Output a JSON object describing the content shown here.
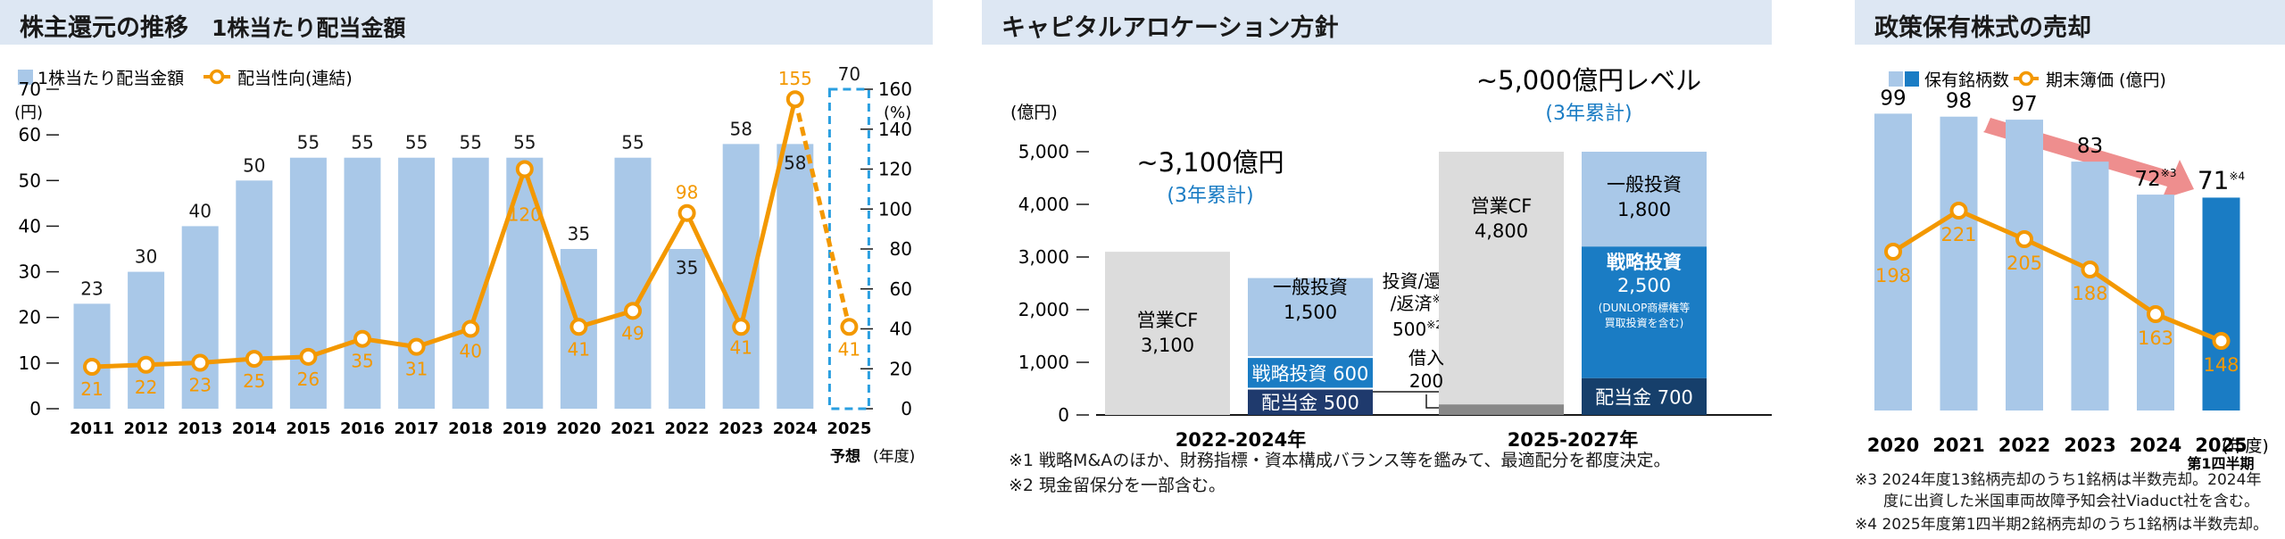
{
  "dividends": {
    "title": "株主還元の推移",
    "subtitle": "1株当たり配当金額",
    "legend_bar": "1株当たり配当金額",
    "legend_line": "配当性向(連結)",
    "left_unit": "(円)",
    "right_unit": "(%)",
    "forecast_label": "予想",
    "year_unit": "(年度)",
    "chart_data": {
      "type": "bar",
      "categories": [
        "2011",
        "2012",
        "2013",
        "2014",
        "2015",
        "2016",
        "2017",
        "2018",
        "2019",
        "2020",
        "2021",
        "2022",
        "2023",
        "2024",
        "2025"
      ],
      "series": [
        {
          "name": "1株当たり配当金額",
          "values": [
            23,
            30,
            40,
            50,
            55,
            55,
            55,
            55,
            55,
            35,
            55,
            35,
            58,
            58,
            70
          ]
        },
        {
          "name": "配当性向(連結)",
          "values": [
            21,
            22,
            23,
            25,
            26,
            35,
            31,
            40,
            120,
            41,
            49,
            98,
            41,
            155,
            41
          ]
        }
      ],
      "forecast_index": 14,
      "ylim_left": [
        0,
        70
      ],
      "yticks_left": [
        0,
        10,
        20,
        30,
        40,
        50,
        60,
        70
      ],
      "ylim_right": [
        0,
        160
      ],
      "yticks_right": [
        0,
        20,
        40,
        60,
        80,
        100,
        120,
        140,
        160
      ]
    }
  },
  "capital": {
    "title": "キャピタルアロケーション方針",
    "unit": "(億円)",
    "chart_data": {
      "type": "bar",
      "ylim": [
        0,
        5000
      ],
      "yticks": [
        0,
        1000,
        2000,
        3000,
        4000,
        5000
      ],
      "ytick_labels": [
        "0",
        "1,000",
        "2,000",
        "3,000",
        "4,000",
        "5,000"
      ],
      "periods": [
        {
          "label": "2022-2024年",
          "total_label": "~3,100億円",
          "total_sub": "(3年累計)",
          "source": {
            "name": "営業CF",
            "value": "3,100",
            "amount": 3100
          },
          "uses": [
            {
              "name": "配当金",
              "value": "500",
              "amount": 500
            },
            {
              "name": "戦略投資",
              "value": "600",
              "amount": 600
            },
            {
              "name": "一般投資",
              "value": "1,500",
              "amount": 1500
            }
          ],
          "other": {
            "name": "投資/還元/返済",
            "note1": "※1",
            "value": "500",
            "note2": "※2"
          }
        },
        {
          "label": "2025-2027年",
          "total_label": "~5,000億円レベル",
          "total_sub": "(3年累計)",
          "source": {
            "name": "営業CF",
            "value": "4,800",
            "amount": 4800
          },
          "borrow": {
            "name": "借入",
            "value": "200",
            "amount": 200
          },
          "uses": [
            {
              "name": "配当金",
              "value": "700",
              "amount": 700
            },
            {
              "name": "戦略投資",
              "value": "2,500",
              "amount": 2500,
              "sub1": "(DUNLOP商標権等",
              "sub2": "買取投資を含む)"
            },
            {
              "name": "一般投資",
              "value": "1,800",
              "amount": 1800
            }
          ]
        }
      ]
    },
    "note1": "※1 戦略M&Aのほか、財務指標・資本構成バランス等を鑑みて、最適配分を都度決定。",
    "note2": "※2 現金留保分を一部含む。"
  },
  "holdings": {
    "title": "政策保有株式の売却",
    "legend_bar": "保有銘柄数",
    "legend_line": "期末簿価 (億円)",
    "year_unit": "(年度)",
    "last_sub": "第1四半期",
    "chart_data": {
      "type": "bar",
      "categories": [
        "2020",
        "2021",
        "2022",
        "2023",
        "2024",
        "2025"
      ],
      "series": [
        {
          "name": "保有銘柄数",
          "values": [
            99,
            98,
            97,
            83,
            72,
            71
          ]
        },
        {
          "name": "期末簿価",
          "values": [
            198,
            221,
            205,
            188,
            163,
            148
          ]
        }
      ],
      "bar_notes": [
        "",
        "",
        "",
        "",
        "※3",
        "※4"
      ]
    },
    "note3_l1": "※3 2024年度13銘柄売却のうち1銘柄は半数売却。2024年",
    "note3_l2": "度に出資した米国車両故障予知会社Viaduct社を含む。",
    "note4": "※4 2025年度第1四半期2銘柄売却のうち1銘柄は半数売却。"
  },
  "colors": {
    "bar_light": "#a9c8e8",
    "bar_dark": "#1a7cc4",
    "navy": "#1f3a6d",
    "orange": "#f39800",
    "gray": "#dcdcdc",
    "header_bg": "#dde7f3",
    "arrow": "#ee8e8e"
  }
}
